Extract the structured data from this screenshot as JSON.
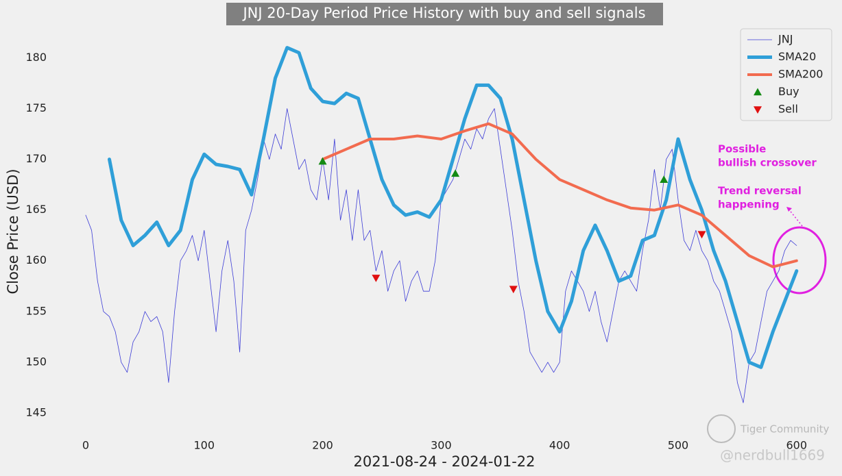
{
  "chart_data": {
    "type": "line",
    "title": "JNJ 20-Day Period Price History with buy and sell signals",
    "x_label": "2021-08-24 - 2024-01-22",
    "y_label": "Close Price (USD)",
    "xlim": [
      -10,
      630
    ],
    "ylim": [
      142.5,
      183
    ],
    "xticks": [
      0,
      100,
      200,
      300,
      400,
      500,
      600
    ],
    "yticks": [
      145,
      150,
      155,
      160,
      165,
      170,
      175,
      180
    ],
    "grid": false,
    "legend": "upper right",
    "series": [
      {
        "name": "JNJ",
        "color": "#3b3bd6",
        "kind": "line",
        "width": 0.8,
        "x": [
          0,
          5,
          10,
          15,
          20,
          25,
          30,
          35,
          40,
          45,
          50,
          55,
          60,
          65,
          70,
          75,
          80,
          85,
          90,
          95,
          100,
          105,
          110,
          115,
          120,
          125,
          130,
          135,
          140,
          145,
          150,
          155,
          160,
          165,
          170,
          175,
          180,
          185,
          190,
          195,
          200,
          205,
          210,
          215,
          220,
          225,
          230,
          235,
          240,
          245,
          250,
          255,
          260,
          265,
          270,
          275,
          280,
          285,
          290,
          295,
          300,
          305,
          310,
          315,
          320,
          325,
          330,
          335,
          340,
          345,
          350,
          355,
          360,
          365,
          370,
          375,
          380,
          385,
          390,
          395,
          400,
          405,
          410,
          415,
          420,
          425,
          430,
          435,
          440,
          445,
          450,
          455,
          460,
          465,
          470,
          475,
          480,
          485,
          490,
          495,
          500,
          505,
          510,
          515,
          520,
          525,
          530,
          535,
          540,
          545,
          550,
          555,
          560,
          565,
          570,
          575,
          580,
          585,
          590,
          595,
          600
        ],
        "values": [
          164.5,
          163,
          158,
          155,
          154.5,
          153,
          150,
          149,
          152,
          153,
          155,
          154,
          154.5,
          153,
          148,
          155,
          160,
          161,
          162.5,
          160,
          163,
          158,
          153,
          159,
          162,
          158,
          151,
          163,
          165,
          168,
          172,
          170,
          172.5,
          171,
          175,
          172,
          169,
          170,
          167,
          166,
          170,
          166,
          172,
          164,
          167,
          162,
          167,
          162,
          163,
          159,
          161,
          157,
          159,
          160,
          156,
          158,
          159,
          157,
          157,
          160,
          166,
          167,
          168,
          170,
          172,
          171,
          173,
          172,
          174,
          175,
          171,
          167,
          163,
          158,
          155,
          151,
          150,
          149,
          150,
          149,
          150,
          157,
          159,
          158,
          157,
          155,
          157,
          154,
          152,
          155,
          158,
          159,
          158,
          157,
          161,
          164,
          169,
          165,
          170,
          171,
          166,
          162,
          161,
          163,
          161,
          160,
          158,
          157,
          155,
          153,
          148,
          146,
          150,
          151,
          154,
          157,
          158,
          159,
          161,
          162,
          161.5
        ]
      },
      {
        "name": "SMA20",
        "color": "#2f9fd8",
        "kind": "line",
        "width": 5,
        "x": [
          20,
          30,
          40,
          50,
          60,
          70,
          80,
          90,
          100,
          110,
          120,
          130,
          140,
          150,
          160,
          170,
          180,
          190,
          200,
          210,
          220,
          230,
          240,
          250,
          260,
          270,
          280,
          290,
          300,
          310,
          320,
          330,
          340,
          350,
          360,
          370,
          380,
          390,
          400,
          410,
          420,
          430,
          440,
          450,
          460,
          470,
          480,
          490,
          500,
          510,
          520,
          530,
          540,
          550,
          560,
          570,
          580,
          590,
          600
        ],
        "values": [
          170,
          164,
          161.5,
          162.5,
          163.8,
          161.5,
          163,
          168,
          170.5,
          169.5,
          169.3,
          169,
          166.5,
          172,
          178,
          181,
          180.5,
          177,
          175.7,
          175.5,
          176.5,
          176,
          172,
          168,
          165.5,
          164.5,
          164.8,
          164.3,
          166,
          170,
          174,
          177.3,
          177.3,
          176,
          172,
          166,
          160,
          155,
          153,
          156,
          161,
          163.5,
          161,
          158,
          158.5,
          162,
          162.5,
          166,
          172,
          168,
          165,
          161,
          158,
          154,
          150,
          149.5,
          153,
          156,
          159
        ]
      },
      {
        "name": "SMA200",
        "color": "#f26b4f",
        "kind": "line",
        "width": 4,
        "x": [
          200,
          220,
          240,
          260,
          280,
          300,
          320,
          340,
          360,
          380,
          400,
          420,
          440,
          460,
          480,
          500,
          520,
          540,
          560,
          580,
          600
        ],
        "values": [
          170,
          171,
          172,
          172,
          172.3,
          172,
          172.8,
          173.5,
          172.5,
          170,
          168,
          167,
          166,
          165.2,
          165,
          165.5,
          164.5,
          162.5,
          160.5,
          159.4,
          160
        ]
      },
      {
        "name": "Buy",
        "color": "#138a13",
        "kind": "up",
        "x": [
          200,
          312,
          488
        ],
        "values": [
          169.8,
          168.6,
          168
        ]
      },
      {
        "name": "Sell",
        "color": "#e01010",
        "kind": "down",
        "x": [
          245,
          361,
          520
        ],
        "values": [
          158.3,
          157.2,
          162.6
        ]
      }
    ],
    "annotations": [
      {
        "lines": [
          "Possible",
          "bullish crossover"
        ],
        "color": "#e020e0"
      },
      {
        "lines": [
          "Trend reversal",
          "happening"
        ],
        "color": "#e020e0"
      }
    ],
    "watermark": [
      "Tiger Community",
      "@nerdbull1669"
    ]
  }
}
